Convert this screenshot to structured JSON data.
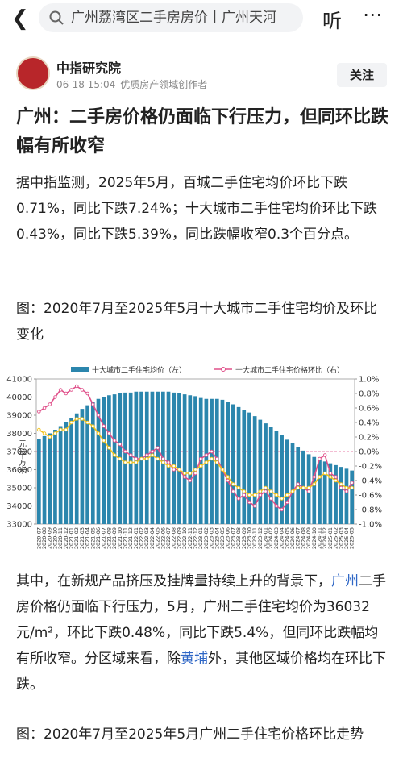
{
  "top_bar": {
    "search_text": "广州荔湾区二手房房价丨广州天河",
    "listen": "听"
  },
  "author": {
    "name": "中指研究院",
    "time": "06-18 15:04",
    "role": "优质房产领域创作者",
    "follow": "关注"
  },
  "article": {
    "title": "广州：二手房价格仍面临下行压力，但同环比跌幅有所收窄",
    "paragraph_1": "据中指监测，2025年5月，百城二手住宅均价环比下跌0.71%，同比下跌7.24%；十大城市二手住宅均价环比下跌0.43%，同比下跌5.39%，同比跌幅收窄0.3个百分点。",
    "caption_1": "图：2020年7月至2025年5月十大城市二手住宅均价及环比变化",
    "paragraph_2": [
      "其中，在新规产品挤压及挂牌量持续上升的背景下，",
      "广州",
      "二手房价格仍面临下行压力，5月，广州二手住宅均价为36032元/m²，环比下跌0.48%，同比下跌5.4%，但同环比跌幅均有所收窄。分区域来看，除",
      "黄埔",
      "外，其他区域价格均在环比下跌。"
    ],
    "caption_2": "图：2020年7月至2025年5月广州二手住宅价格环比走势"
  },
  "chart_data": {
    "type": "bar",
    "y_label": "元/平方米",
    "categories": [
      "2020-07",
      "2020-08",
      "2020-09",
      "2020-10",
      "2020-11",
      "2020-12",
      "2021-01",
      "2021-02",
      "2021-03",
      "2021-04",
      "2021-05",
      "2021-06",
      "2021-07",
      "2021-08",
      "2021-09",
      "2021-10",
      "2021-11",
      "2021-12",
      "2022-01",
      "2022-02",
      "2022-03",
      "2022-04",
      "2022-05",
      "2022-06",
      "2022-07",
      "2022-08",
      "2022-09",
      "2022-10",
      "2022-11",
      "2022-12",
      "2023-01",
      "2023-02",
      "2023-03",
      "2023-04",
      "2023-05",
      "2023-06",
      "2023-07",
      "2023-08",
      "2023-09",
      "2023-10",
      "2023-11",
      "2023-12",
      "2024-01",
      "2024-02",
      "2024-03",
      "2024-04",
      "2024-05",
      "2024-06",
      "2024-07",
      "2024-08",
      "2024-09",
      "2024-10",
      "2024-11",
      "2024-12",
      "2025-01",
      "2025-02",
      "2025-03",
      "2025-04",
      "2025-05"
    ],
    "series": [
      {
        "name": "十大城市二手住宅均价（左）",
        "type": "bar",
        "color": "#2b86ad",
        "values": [
          37700,
          37850,
          38000,
          38200,
          38400,
          38600,
          38850,
          39100,
          39350,
          39550,
          39750,
          39900,
          40000,
          40100,
          40150,
          40200,
          40250,
          40250,
          40300,
          40300,
          40300,
          40300,
          40300,
          40300,
          40300,
          40250,
          40200,
          40150,
          40100,
          40050,
          39950,
          39900,
          39900,
          39900,
          39850,
          39750,
          39600,
          39450,
          39300,
          39150,
          38950,
          38750,
          38550,
          38350,
          38150,
          37900,
          37650,
          37450,
          37250,
          37050,
          36850,
          36700,
          36550,
          36450,
          36350,
          36250,
          36150,
          36050,
          35950
        ]
      },
      {
        "name": "十大城市二手住宅价格环比（右）",
        "type": "line",
        "axis": "y2",
        "color": "#e0508a",
        "values": [
          0.55,
          0.6,
          0.65,
          0.75,
          0.85,
          0.8,
          0.85,
          0.9,
          0.85,
          0.8,
          0.65,
          0.5,
          0.35,
          0.25,
          0.15,
          0.1,
          0.0,
          -0.05,
          -0.1,
          -0.1,
          -0.05,
          0.0,
          0.05,
          -0.1,
          -0.15,
          -0.25,
          -0.25,
          -0.35,
          -0.4,
          -0.3,
          -0.1,
          -0.05,
          0.0,
          -0.1,
          -0.25,
          -0.4,
          -0.55,
          -0.65,
          -0.6,
          -0.7,
          -0.75,
          -0.6,
          -0.55,
          -0.65,
          -0.75,
          -0.8,
          -0.7,
          -0.55,
          -0.45,
          -0.5,
          -0.55,
          -0.35,
          -0.1,
          -0.05,
          -0.3,
          -0.35,
          -0.5,
          -0.55,
          -0.43
        ]
      },
      {
        "type": "line",
        "axis": "y2",
        "color": "#f2c31c",
        "values": [
          0.3,
          0.25,
          0.2,
          0.25,
          0.3,
          0.3,
          0.4,
          0.45,
          0.45,
          0.4,
          0.35,
          0.25,
          0.15,
          0.05,
          -0.05,
          -0.1,
          -0.15,
          -0.15,
          -0.15,
          -0.1,
          -0.1,
          -0.05,
          -0.1,
          -0.15,
          -0.2,
          -0.2,
          -0.25,
          -0.3,
          -0.3,
          -0.25,
          -0.2,
          -0.15,
          -0.1,
          -0.15,
          -0.25,
          -0.35,
          -0.45,
          -0.5,
          -0.55,
          -0.6,
          -0.6,
          -0.55,
          -0.5,
          -0.55,
          -0.6,
          -0.65,
          -0.6,
          -0.55,
          -0.5,
          -0.5,
          -0.5,
          -0.45,
          -0.35,
          -0.3,
          -0.35,
          -0.4,
          -0.45,
          -0.5,
          -0.5
        ]
      }
    ],
    "ylim": [
      33000,
      41000
    ],
    "yticks": [
      33000,
      34000,
      35000,
      36000,
      37000,
      38000,
      39000,
      40000,
      41000
    ],
    "y2lim": [
      -1.0,
      1.0
    ],
    "y2ticks": [
      {
        "value": -1.0,
        "label": "-1.0%"
      },
      {
        "value": -0.8,
        "label": "-0.8%"
      },
      {
        "value": -0.6,
        "label": "-0.6%"
      },
      {
        "value": -0.4,
        "label": "-0.4%"
      },
      {
        "value": -0.2,
        "label": "-0.2%"
      },
      {
        "value": 0.0,
        "label": "0.0%"
      },
      {
        "value": 0.2,
        "label": "0.2%"
      },
      {
        "value": 0.4,
        "label": "0.4%"
      },
      {
        "value": 0.6,
        "label": "0.6%"
      },
      {
        "value": 0.8,
        "label": "0.8%"
      },
      {
        "value": 1.0,
        "label": "1.0%"
      }
    ]
  }
}
